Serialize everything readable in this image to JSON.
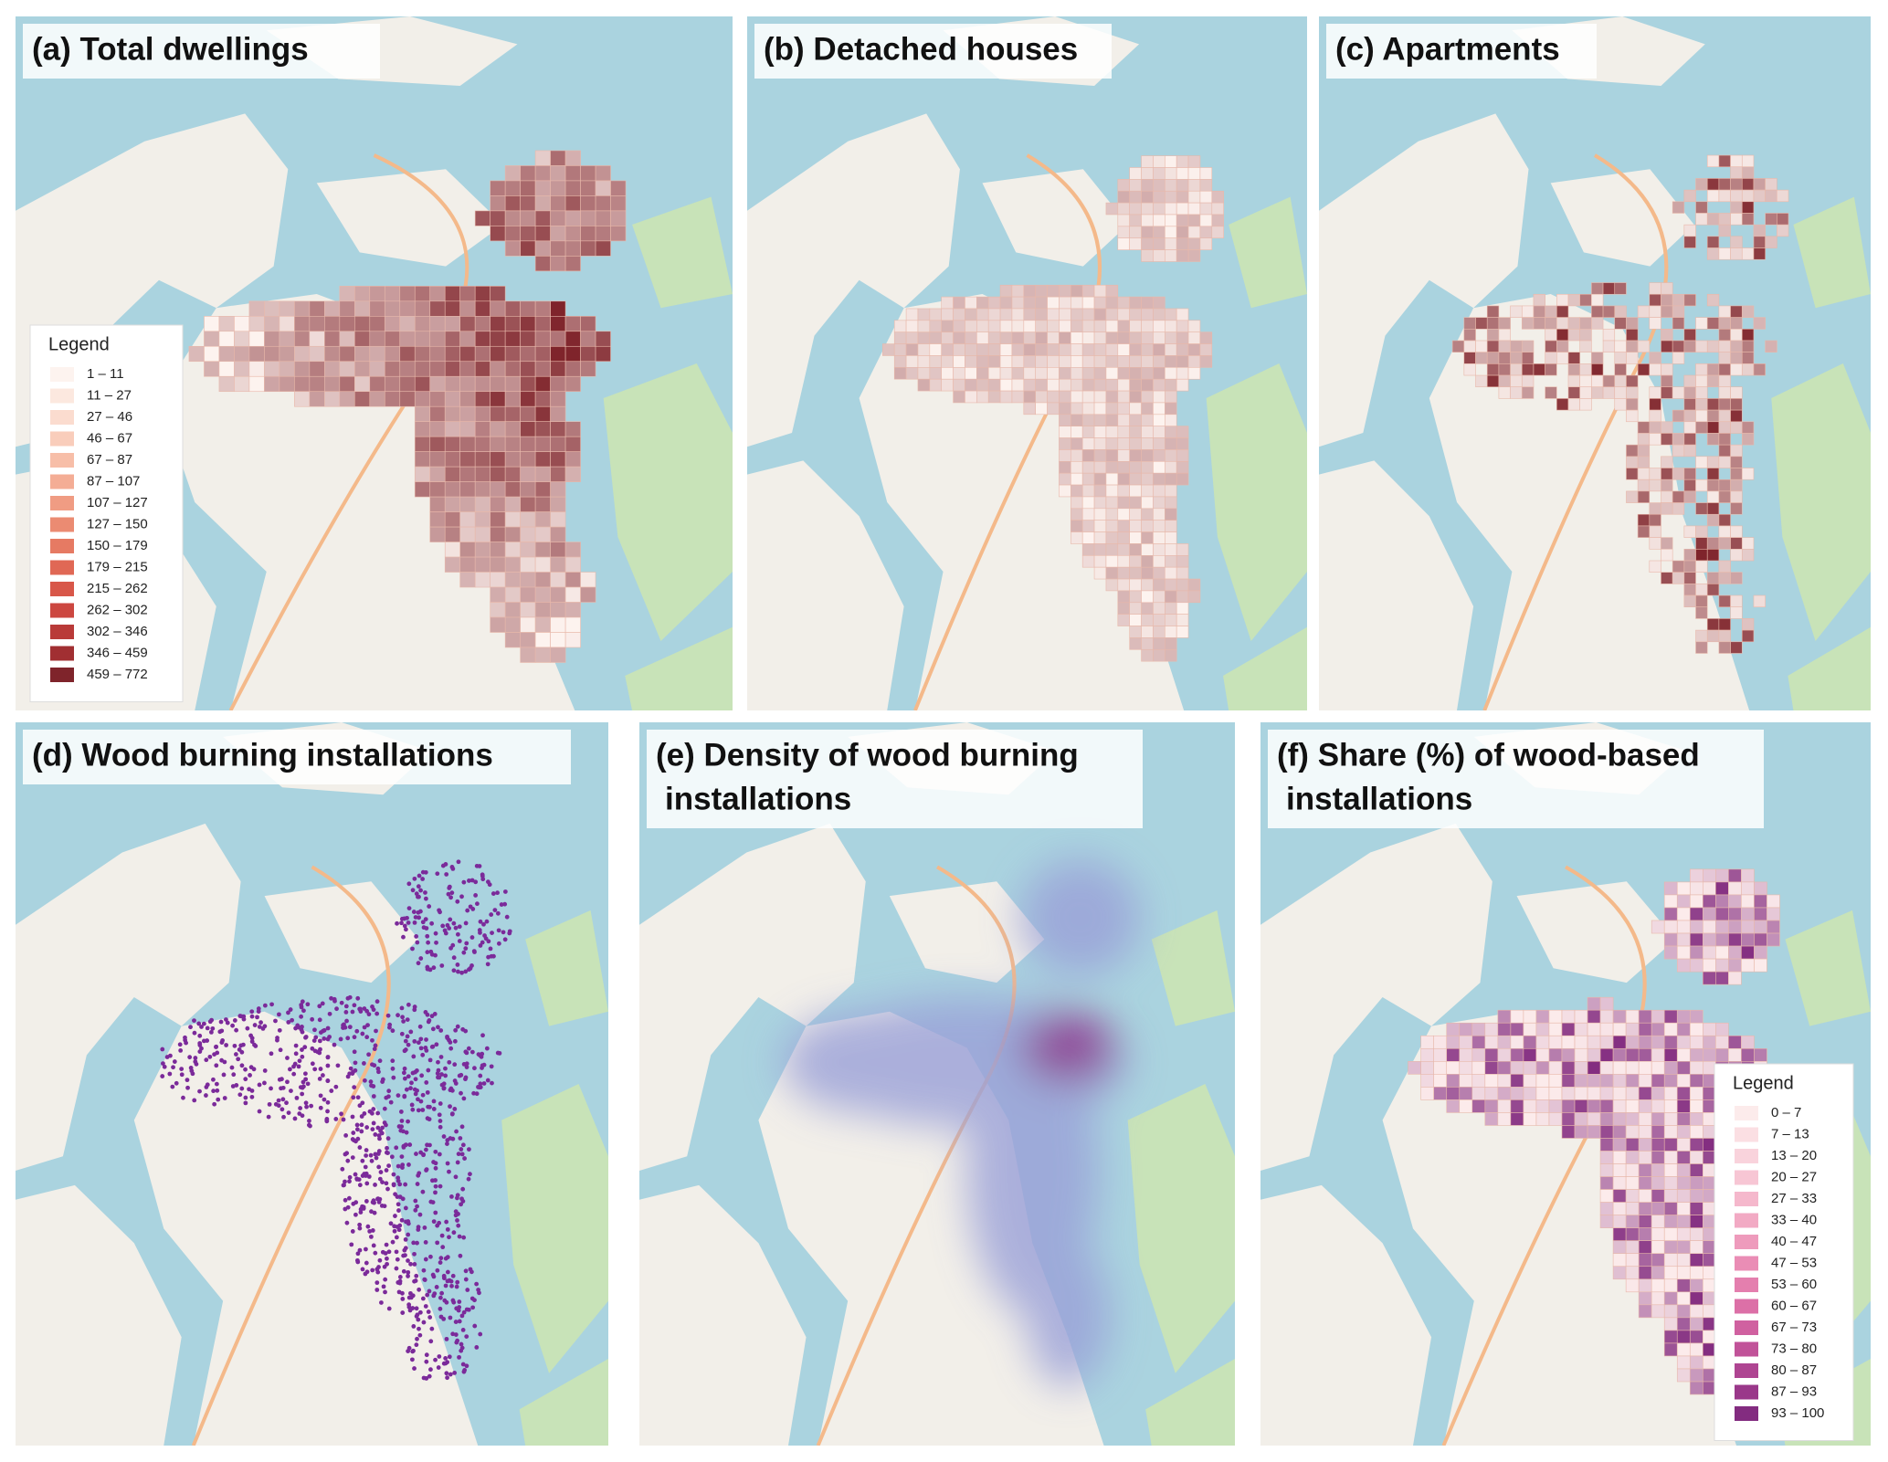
{
  "panels": [
    {
      "title": [
        "(a) Total dwellings"
      ],
      "style": "grid-red",
      "legend": {
        "title": "Legend",
        "items": [
          {
            "label": "1 – 11",
            "color": "#fdf3ef"
          },
          {
            "label": "11 – 27",
            "color": "#fce8df"
          },
          {
            "label": "27 – 46",
            "color": "#fbdccf"
          },
          {
            "label": "46 – 67",
            "color": "#f9cdbb"
          },
          {
            "label": "67 – 87",
            "color": "#f7bea8"
          },
          {
            "label": "87 – 107",
            "color": "#f4ad95"
          },
          {
            "label": "107 – 127",
            "color": "#f09c83"
          },
          {
            "label": "127 – 150",
            "color": "#eb8b72"
          },
          {
            "label": "150 – 179",
            "color": "#e67a63"
          },
          {
            "label": "179 – 215",
            "color": "#e06855"
          },
          {
            "label": "215 – 262",
            "color": "#d85749"
          },
          {
            "label": "262 – 302",
            "color": "#cc4740"
          },
          {
            "label": "302 – 346",
            "color": "#b93a38"
          },
          {
            "label": "346 – 459",
            "color": "#a12f32"
          },
          {
            "label": "459 – 772",
            "color": "#7f242b"
          }
        ]
      }
    },
    {
      "title": [
        "(b) Detached houses"
      ],
      "style": "grid-light"
    },
    {
      "title": [
        "(c) Apartments"
      ],
      "style": "grid-sparse"
    },
    {
      "title": [
        "(d) Wood burning installations"
      ],
      "style": "dots"
    },
    {
      "title": [
        "(e) Density of wood burning",
        "installations"
      ],
      "style": "heat"
    },
    {
      "title": [
        "(f) Share (%) of wood-based",
        "installations"
      ],
      "style": "grid-pink",
      "legend": {
        "title": "Legend",
        "items": [
          {
            "label": "0 – 7",
            "color": "#fcebeb"
          },
          {
            "label": "7 – 13",
            "color": "#fbdfe3"
          },
          {
            "label": "13 – 20",
            "color": "#f9d3dc"
          },
          {
            "label": "20 – 27",
            "color": "#f7c6d4"
          },
          {
            "label": "27 – 33",
            "color": "#f5b8cc"
          },
          {
            "label": "33 – 40",
            "color": "#f2aac4"
          },
          {
            "label": "40 – 47",
            "color": "#ee9bbc"
          },
          {
            "label": "47 – 53",
            "color": "#ea8db5"
          },
          {
            "label": "53 – 60",
            "color": "#e47fae"
          },
          {
            "label": "60 – 67",
            "color": "#dc70a7"
          },
          {
            "label": "67 – 73",
            "color": "#d061a0"
          },
          {
            "label": "73 – 80",
            "color": "#c15399"
          },
          {
            "label": "80 – 87",
            "color": "#af4592"
          },
          {
            "label": "87 – 93",
            "color": "#9a388a"
          },
          {
            "label": "93 – 100",
            "color": "#832c80"
          }
        ]
      }
    }
  ]
}
